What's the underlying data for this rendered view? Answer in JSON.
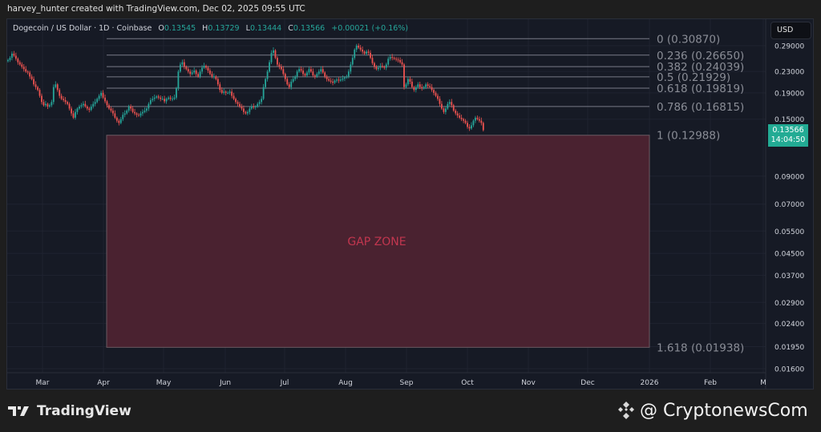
{
  "attribution": "harvey_hunter created with TradingView.com, Dec 02, 2025 09:55 UTC",
  "legend": {
    "symbol": "Dogecoin / US Dollar · 1D · Coinbase",
    "open_label": "O",
    "open": "0.13545",
    "high_label": "H",
    "high": "0.13729",
    "low_label": "L",
    "low": "0.13444",
    "close_label": "C",
    "close": "0.13566",
    "change": "+0.00021 (+0.16%)"
  },
  "currency_button": "USD",
  "price_tag": {
    "price": "0.13566",
    "countdown": "14:04:50"
  },
  "colors": {
    "up": "#26a69a",
    "down": "#ef5350",
    "gap_zone_fill": "#4a2230",
    "gap_zone_text": "#c2364f",
    "fib_line": "#787b86",
    "price_tag": "#22ab94"
  },
  "footer": {
    "brand": "TradingView",
    "watermark": "@ CryptonewsCom"
  },
  "chart_data": {
    "type": "candlestick",
    "title": "Dogecoin / US Dollar · 1D · Coinbase",
    "scale": "log",
    "ylim": [
      0.0155,
      0.33
    ],
    "y_ticks": [
      0.29,
      0.23,
      0.19,
      0.15,
      0.09,
      0.07,
      0.055,
      0.045,
      0.037,
      0.029,
      0.024,
      0.0195,
      0.016
    ],
    "x_ticks": [
      "Mar",
      "Apr",
      "May",
      "Jun",
      "Jul",
      "Aug",
      "Sep",
      "Oct",
      "Nov",
      "Dec",
      "2026",
      "Feb",
      "M"
    ],
    "last_price": 0.13566,
    "fib_levels": [
      {
        "ratio": "0",
        "price": 0.3087,
        "label": "0 (0.30870)"
      },
      {
        "ratio": "0.236",
        "price": 0.2665,
        "label": "0.236 (0.26650)"
      },
      {
        "ratio": "0.382",
        "price": 0.24039,
        "label": "0.382 (0.24039)"
      },
      {
        "ratio": "0.5",
        "price": 0.21929,
        "label": "0.5 (0.21929)"
      },
      {
        "ratio": "0.618",
        "price": 0.19819,
        "label": "0.618 (0.19819)"
      },
      {
        "ratio": "0.786",
        "price": 0.16815,
        "label": "0.786 (0.16815)"
      },
      {
        "ratio": "1",
        "price": 0.12988,
        "label": "1 (0.12988)"
      },
      {
        "ratio": "1.618",
        "price": 0.01938,
        "label": "1.618 (0.01938)"
      }
    ],
    "annotations": [
      {
        "type": "rect",
        "label": "GAP ZONE",
        "price_top": 0.12988,
        "price_bottom": 0.01938
      }
    ],
    "approx_close_path": {
      "start": "2025-02-20",
      "interval": "1D",
      "closes": [
        0.255,
        0.26,
        0.27,
        0.265,
        0.258,
        0.25,
        0.245,
        0.24,
        0.235,
        0.23,
        0.228,
        0.22,
        0.215,
        0.205,
        0.2,
        0.195,
        0.185,
        0.175,
        0.17,
        0.172,
        0.168,
        0.17,
        0.175,
        0.2,
        0.205,
        0.195,
        0.185,
        0.18,
        0.178,
        0.175,
        0.172,
        0.165,
        0.158,
        0.152,
        0.16,
        0.165,
        0.168,
        0.17,
        0.172,
        0.168,
        0.165,
        0.163,
        0.168,
        0.172,
        0.175,
        0.18,
        0.185,
        0.19,
        0.182,
        0.176,
        0.17,
        0.165,
        0.162,
        0.158,
        0.152,
        0.148,
        0.145,
        0.15,
        0.156,
        0.158,
        0.162,
        0.168,
        0.165,
        0.16,
        0.158,
        0.156,
        0.155,
        0.158,
        0.16,
        0.162,
        0.165,
        0.172,
        0.178,
        0.18,
        0.182,
        0.184,
        0.182,
        0.18,
        0.18,
        0.176,
        0.18,
        0.182,
        0.18,
        0.18,
        0.182,
        0.198,
        0.23,
        0.245,
        0.25,
        0.24,
        0.235,
        0.23,
        0.225,
        0.228,
        0.232,
        0.225,
        0.22,
        0.23,
        0.238,
        0.242,
        0.238,
        0.232,
        0.225,
        0.22,
        0.22,
        0.215,
        0.205,
        0.195,
        0.19,
        0.192,
        0.19,
        0.19,
        0.192,
        0.185,
        0.18,
        0.175,
        0.172,
        0.168,
        0.165,
        0.16,
        0.158,
        0.16,
        0.165,
        0.168,
        0.167,
        0.168,
        0.172,
        0.175,
        0.18,
        0.2,
        0.215,
        0.23,
        0.25,
        0.272,
        0.278,
        0.26,
        0.245,
        0.24,
        0.235,
        0.225,
        0.215,
        0.205,
        0.2,
        0.21,
        0.215,
        0.22,
        0.23,
        0.235,
        0.232,
        0.225,
        0.222,
        0.228,
        0.235,
        0.23,
        0.222,
        0.22,
        0.225,
        0.23,
        0.235,
        0.228,
        0.22,
        0.215,
        0.212,
        0.21,
        0.208,
        0.212,
        0.214,
        0.212,
        0.214,
        0.216,
        0.218,
        0.22,
        0.23,
        0.245,
        0.26,
        0.28,
        0.29,
        0.285,
        0.28,
        0.275,
        0.27,
        0.275,
        0.272,
        0.26,
        0.248,
        0.24,
        0.235,
        0.238,
        0.242,
        0.24,
        0.238,
        0.245,
        0.258,
        0.262,
        0.26,
        0.258,
        0.256,
        0.255,
        0.25,
        0.245,
        0.2,
        0.205,
        0.215,
        0.21,
        0.2,
        0.195,
        0.2,
        0.205,
        0.2,
        0.198,
        0.2,
        0.205,
        0.202,
        0.2,
        0.195,
        0.19,
        0.185,
        0.18,
        0.172,
        0.165,
        0.16,
        0.165,
        0.172,
        0.175,
        0.17,
        0.162,
        0.158,
        0.155,
        0.152,
        0.15,
        0.148,
        0.145,
        0.14,
        0.138,
        0.142,
        0.148,
        0.152,
        0.15,
        0.148,
        0.145,
        0.136
      ]
    }
  }
}
